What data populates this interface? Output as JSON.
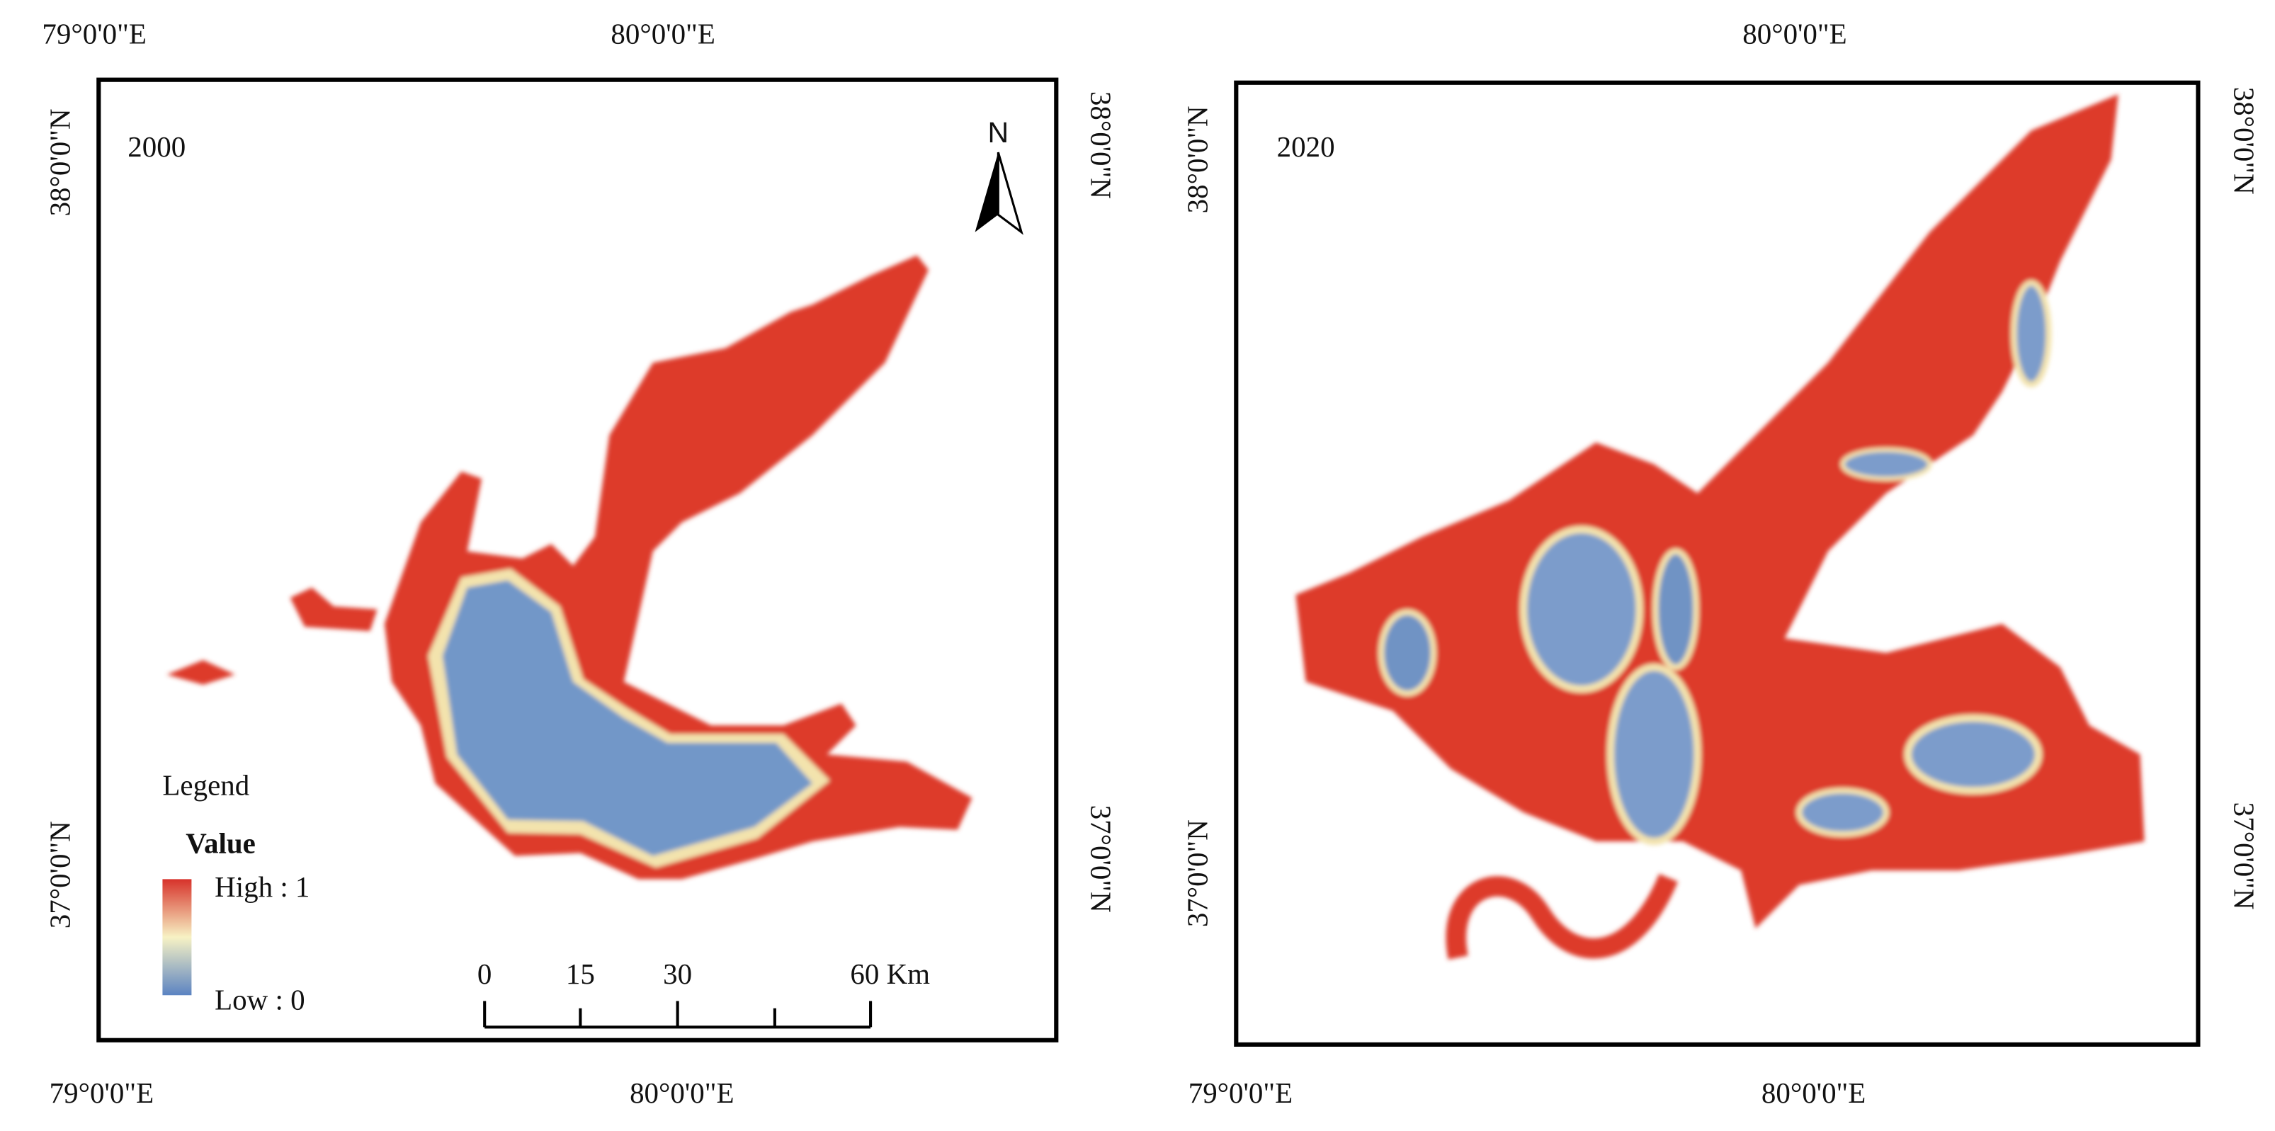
{
  "panels": [
    {
      "label": "2000",
      "top_labels": [
        "79°0'0\"E",
        "80°0'0\"E"
      ],
      "bottom_labels": [
        "79°0'0\"E",
        "80°0'0\"E"
      ],
      "left_labels": [
        "38°0'0\"N",
        "37°0'0\"N"
      ],
      "right_labels": [
        "38°0'0\"N",
        "37°0'0\"N"
      ]
    },
    {
      "label": "2020",
      "top_labels": [
        "80°0'0\"E"
      ],
      "bottom_labels": [
        "79°0'0\"E",
        "80°0'0\"E"
      ],
      "left_labels": [
        "38°0'0\"N",
        "37°0'0\"N"
      ],
      "right_labels": [
        "38°0'0\"N",
        "37°0'0\"N"
      ]
    }
  ],
  "legend": {
    "title": "Legend",
    "field": "Value",
    "high": "High : 1",
    "low": "Low : 0"
  },
  "scale_bar": {
    "ticks": [
      "0",
      "15",
      "30",
      "60 Km"
    ]
  },
  "north_arrow": "N"
}
